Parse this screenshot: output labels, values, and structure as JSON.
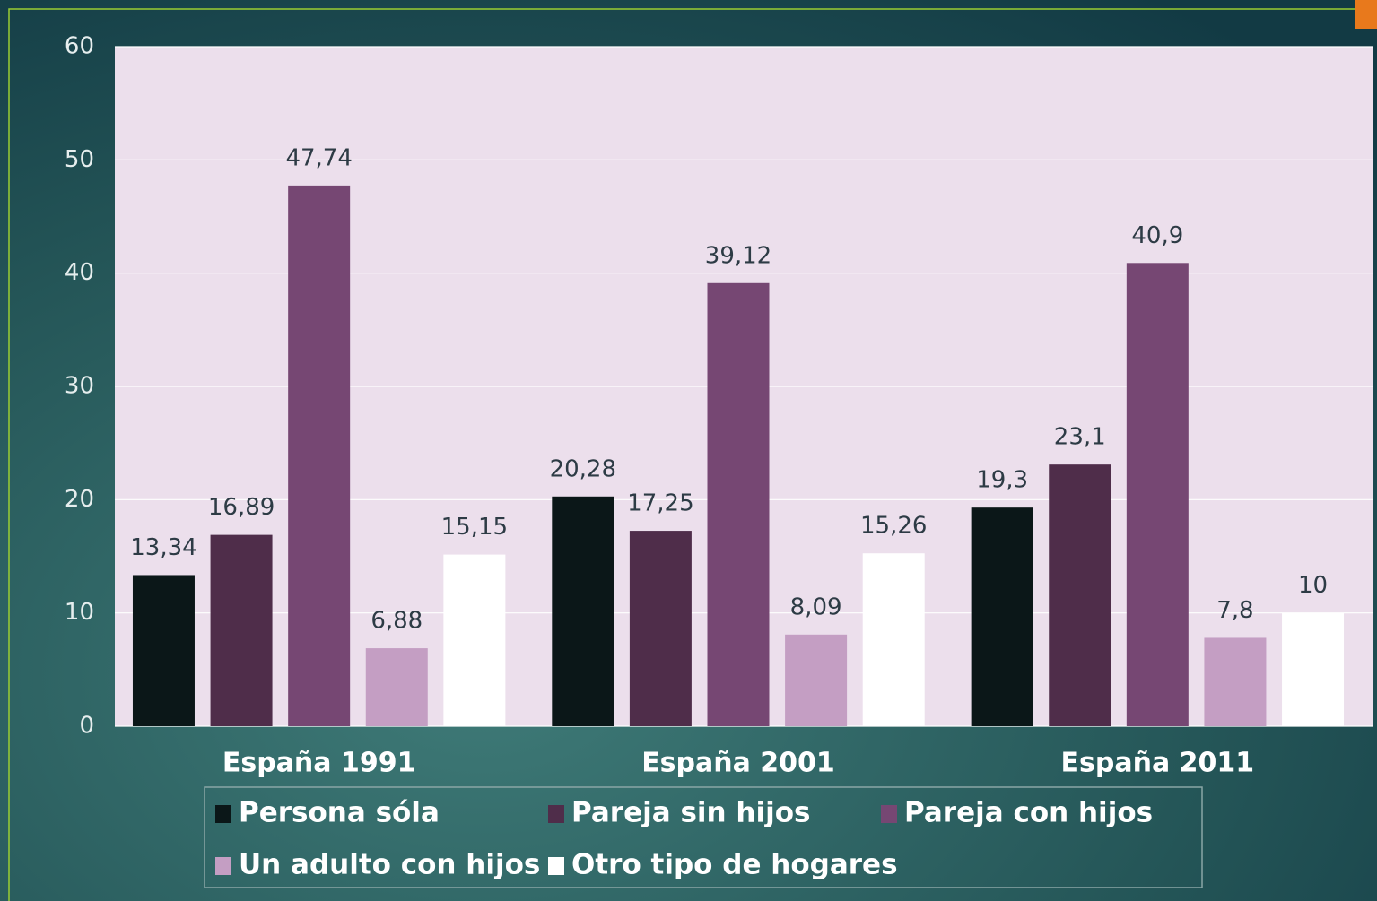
{
  "chart_data": {
    "type": "bar",
    "categories": [
      "España 1991",
      "España 2001",
      "España 2011"
    ],
    "series": [
      {
        "name": "Persona sóla",
        "color": "#0b1718",
        "values": [
          13.34,
          20.28,
          19.3
        ],
        "value_labels": [
          "13,34",
          "20,28",
          "19,3"
        ]
      },
      {
        "name": "Pareja sin hijos",
        "color": "#4f2d4a",
        "values": [
          16.89,
          17.25,
          23.1
        ],
        "value_labels": [
          "16,89",
          "17,25",
          "23,1"
        ]
      },
      {
        "name": "Pareja con hijos",
        "color": "#764773",
        "values": [
          47.74,
          39.12,
          40.9
        ],
        "value_labels": [
          "47,74",
          "39,12",
          "40,9"
        ]
      },
      {
        "name": "Un adulto con hijos",
        "color": "#c49ec3",
        "values": [
          6.88,
          8.09,
          7.8
        ],
        "value_labels": [
          "6,88",
          "8,09",
          "7,8"
        ]
      },
      {
        "name": "Otro tipo de hogares",
        "color": "#ffffff",
        "values": [
          15.15,
          15.26,
          10
        ],
        "value_labels": [
          "15,15",
          "15,26",
          "10"
        ]
      }
    ],
    "ylim": [
      0,
      60
    ],
    "yticks": [
      0,
      10,
      20,
      30,
      40,
      50,
      60
    ],
    "grid": true,
    "legend": "bottom"
  }
}
